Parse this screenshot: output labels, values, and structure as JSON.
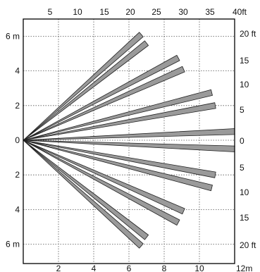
{
  "colors": {
    "beam_fill": "#9a9a9a",
    "beam_stroke": "#222222",
    "grid": "#555555"
  },
  "axes": {
    "bottom_ticks": [
      "2",
      "4",
      "6",
      "8",
      "10",
      "12m"
    ],
    "top_ticks": [
      "5",
      "10",
      "15",
      "20",
      "25",
      "30",
      "35",
      "40ft"
    ],
    "left_ticks": [
      "6 m",
      "4",
      "2",
      "0",
      "2",
      "4",
      "6 m"
    ],
    "right_ticks": [
      "20 ft",
      "15",
      "10",
      "5",
      "0",
      "5",
      "10",
      "15",
      "20 ft"
    ]
  },
  "chart_data": {
    "type": "diagram",
    "description_units": "meters",
    "origin": [
      0,
      0
    ],
    "x_range_m": [
      0,
      12
    ],
    "y_range_m": [
      -6,
      6
    ],
    "beams": [
      {
        "end_x": 6.7,
        "end_y": 6.1
      },
      {
        "end_x": 7.0,
        "end_y": 5.6
      },
      {
        "end_x": 8.8,
        "end_y": 4.75
      },
      {
        "end_x": 9.1,
        "end_y": 4.1
      },
      {
        "end_x": 10.7,
        "end_y": 2.75
      },
      {
        "end_x": 10.9,
        "end_y": 2.0
      },
      {
        "end_x": 12.0,
        "end_y": 0.5
      },
      {
        "end_x": 12.0,
        "end_y": -0.5
      },
      {
        "end_x": 10.9,
        "end_y": -2.0
      },
      {
        "end_x": 10.7,
        "end_y": -2.75
      },
      {
        "end_x": 9.1,
        "end_y": -4.1
      },
      {
        "end_x": 8.8,
        "end_y": -4.75
      },
      {
        "end_x": 7.0,
        "end_y": -5.6
      },
      {
        "end_x": 6.7,
        "end_y": -6.1
      }
    ]
  }
}
